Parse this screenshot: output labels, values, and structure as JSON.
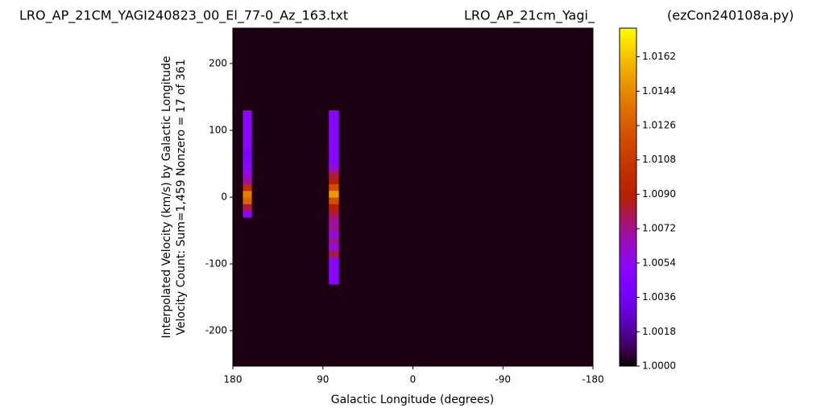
{
  "chart_data": {
    "type": "heatmap",
    "title": "LRO_AP_21CM_YAGI240823_00_El_77-0_Az_163.txt",
    "subtitle": "LRO_AP_21cm_Yagi_",
    "annotation": "(ezCon240108a.py)",
    "ylabel": [
      "Interpolated Velocity (km/s) by Galactic Longitude",
      "Velocity Count: Sum=1,459 Nonzero = 17 of 361"
    ],
    "xlabel": "Galactic Longitude (degrees)",
    "xlim": [
      180,
      -180
    ],
    "xticks": [
      180,
      90,
      0,
      -90,
      -180
    ],
    "ylim": [
      -253,
      253
    ],
    "yticks": [
      -200,
      -100,
      0,
      100,
      200
    ],
    "zlim": [
      1.0,
      1.0177
    ],
    "zticks": [
      {
        "value": 1.0,
        "label": "1.0000"
      },
      1.0018,
      1.0036,
      1.0054,
      1.0072,
      {
        "value": 1.009,
        "label": "1.0090"
      },
      1.0108,
      1.0126,
      1.0144,
      1.0162
    ],
    "colormap": "gnuplot",
    "background_color": "#1c0011",
    "columns": [
      {
        "xlim": [
          170,
          161
        ],
        "ybins": [
          -30,
          -20,
          -10,
          0,
          10,
          20,
          30,
          40,
          50,
          60,
          70,
          80,
          90,
          100,
          110,
          120,
          130
        ],
        "values": [
          1.005,
          1.008,
          1.013,
          1.014,
          1.01,
          1.007,
          1.006,
          1.005,
          1.0045,
          1.004,
          1.005,
          1.005,
          1.005,
          1.005,
          1.005,
          1.005
        ]
      },
      {
        "xlim": [
          84,
          74
        ],
        "ybins": [
          -130,
          -120,
          -110,
          -100,
          -90,
          -80,
          -70,
          -60,
          -50,
          -40,
          -30,
          -20,
          -10,
          0,
          10,
          20,
          30,
          40,
          50,
          60,
          70,
          80,
          90,
          100,
          110,
          120,
          130
        ],
        "values": [
          1.005,
          1.005,
          1.005,
          1.005,
          1.008,
          1.006,
          1.007,
          1.006,
          1.007,
          1.007,
          1.008,
          1.009,
          1.012,
          1.015,
          1.012,
          1.009,
          1.008,
          1.006,
          1.005,
          1.005,
          1.005,
          1.005,
          1.005,
          1.005,
          1.005,
          1.005
        ]
      }
    ]
  }
}
